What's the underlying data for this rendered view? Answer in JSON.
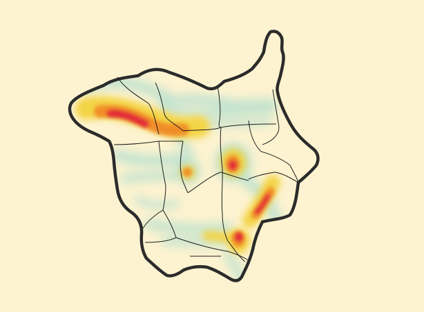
{
  "map": {
    "colors": {
      "background": "#fdf3d0",
      "outline": "#2b2b2b",
      "internal_border": "#1c1c1c",
      "density_low": "#b7e0cf",
      "density_mid": "#f3d23c",
      "density_high": "#f08a28",
      "density_peak": "#e01e3c"
    },
    "legend": null,
    "hotspots": [
      {
        "id": "northwest-band",
        "intensity": "peak"
      },
      {
        "id": "central-east-spot",
        "intensity": "high"
      },
      {
        "id": "central-small-spot",
        "intensity": "high"
      },
      {
        "id": "southeast-ridge",
        "intensity": "high"
      },
      {
        "id": "south-junction",
        "intensity": "high"
      }
    ]
  }
}
